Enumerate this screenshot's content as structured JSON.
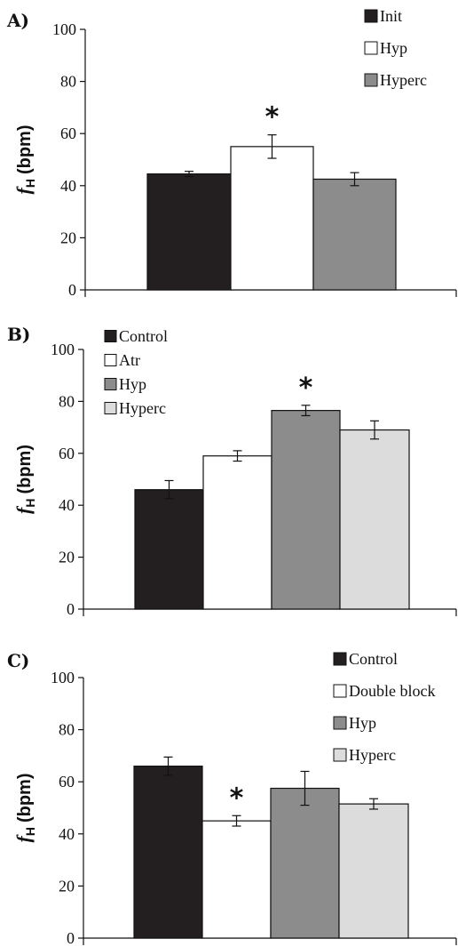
{
  "chart_data": [
    {
      "panel": "A)",
      "type": "bar",
      "ylabel": "fH (bpm)",
      "ylabel_main": "f",
      "ylabel_sub": "H",
      "ylabel_unit": "(bpm)",
      "ylim": [
        0,
        100
      ],
      "yticks": [
        0,
        20,
        40,
        60,
        80,
        100
      ],
      "grid": false,
      "legend_position": "top-right",
      "series": [
        {
          "name": "Init",
          "value": 44.5,
          "error": 1.0,
          "color": "#231f20"
        },
        {
          "name": "Hyp",
          "value": 55,
          "error": 4.5,
          "color": "#ffffff",
          "significant": true
        },
        {
          "name": "Hyperc",
          "value": 42.5,
          "error": 2.5,
          "color": "#8c8c8c"
        }
      ],
      "annotation": "*"
    },
    {
      "panel": "B)",
      "type": "bar",
      "ylabel": "fH (bpm)",
      "ylabel_main": "f",
      "ylabel_sub": "H",
      "ylabel_unit": "(bpm)",
      "ylim": [
        0,
        100
      ],
      "yticks": [
        0,
        20,
        40,
        60,
        80,
        100
      ],
      "grid": false,
      "legend_position": "top-left",
      "series": [
        {
          "name": "Control",
          "value": 46,
          "error": 3.5,
          "color": "#231f20"
        },
        {
          "name": "Atr",
          "value": 59,
          "error": 2.0,
          "color": "#ffffff"
        },
        {
          "name": "Hyp",
          "value": 76.5,
          "error": 2.0,
          "color": "#8c8c8c",
          "significant": true
        },
        {
          "name": "Hyperc",
          "value": 69,
          "error": 3.5,
          "color": "#dcdcdc"
        }
      ],
      "annotation": "*"
    },
    {
      "panel": "C)",
      "type": "bar",
      "ylabel": "fH (bpm)",
      "ylabel_main": "f",
      "ylabel_sub": "H",
      "ylabel_unit": "(bpm)",
      "ylim": [
        0,
        100
      ],
      "yticks": [
        0,
        20,
        40,
        60,
        80,
        100
      ],
      "grid": false,
      "legend_position": "top-right",
      "series": [
        {
          "name": "Control",
          "value": 66,
          "error": 3.5,
          "color": "#231f20"
        },
        {
          "name": "Double block",
          "value": 45,
          "error": 2.0,
          "color": "#ffffff",
          "significant": true
        },
        {
          "name": "Hyp",
          "value": 57.5,
          "error": 6.5,
          "color": "#8c8c8c"
        },
        {
          "name": "Hyperc",
          "value": 51.5,
          "error": 2.0,
          "color": "#dcdcdc"
        }
      ],
      "annotation": "*"
    }
  ]
}
